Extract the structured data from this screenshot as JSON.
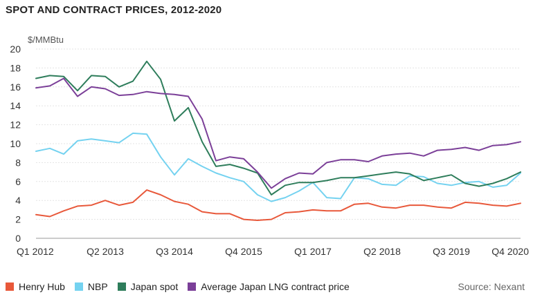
{
  "chart_data": {
    "type": "line",
    "title": "SPOT AND CONTRACT PRICES, 2012-2020",
    "ylabel": "$/MMBtu",
    "xlabel": "",
    "ylim": [
      0,
      20
    ],
    "yticks": [
      0,
      2,
      4,
      6,
      8,
      10,
      12,
      14,
      16,
      18,
      20
    ],
    "grid": true,
    "x_tick_labels": [
      "Q1 2012",
      "Q2 2013",
      "Q3 2014",
      "Q4 2015",
      "Q1 2017",
      "Q2 2018",
      "Q3 2019",
      "Q4 2020"
    ],
    "x_tick_positions": [
      0,
      5,
      10,
      15,
      20,
      25,
      30,
      35
    ],
    "series": [
      {
        "name": "Henry Hub",
        "color": "#e8583a",
        "values": [
          2.5,
          2.3,
          2.9,
          3.4,
          3.5,
          4.0,
          3.5,
          3.8,
          5.1,
          4.6,
          3.9,
          3.6,
          2.8,
          2.6,
          2.6,
          2.0,
          1.9,
          2.0,
          2.7,
          2.8,
          3.0,
          2.9,
          2.9,
          3.6,
          3.7,
          3.3,
          3.2,
          3.5,
          3.5,
          3.3,
          3.2,
          3.8,
          3.7,
          3.5,
          3.4,
          3.7
        ]
      },
      {
        "name": "NBP",
        "color": "#74d2f0",
        "values": [
          9.2,
          9.5,
          8.9,
          10.3,
          10.5,
          10.3,
          10.1,
          11.1,
          11.0,
          8.6,
          6.7,
          8.4,
          7.6,
          6.9,
          6.4,
          6.0,
          4.6,
          3.9,
          4.3,
          5.0,
          5.9,
          4.3,
          4.2,
          6.4,
          6.3,
          5.7,
          5.6,
          6.6,
          6.5,
          5.8,
          5.6,
          5.9,
          6.0,
          5.4,
          5.6,
          6.9
        ]
      },
      {
        "name": "Japan spot",
        "color": "#2e7d5b",
        "values": [
          16.9,
          17.2,
          17.1,
          15.6,
          17.2,
          17.1,
          16.0,
          16.6,
          18.7,
          16.8,
          12.4,
          13.8,
          10.2,
          7.6,
          7.8,
          7.4,
          6.9,
          4.6,
          5.6,
          5.9,
          5.9,
          6.1,
          6.4,
          6.4,
          6.6,
          6.8,
          7.0,
          6.8,
          6.1,
          6.4,
          6.7,
          5.8,
          5.5,
          5.8,
          6.3,
          7.0
        ]
      },
      {
        "name": "Average Japan LNG contract price",
        "color": "#7b3f98",
        "values": [
          15.9,
          16.1,
          16.9,
          15.0,
          16.0,
          15.8,
          15.1,
          15.2,
          15.5,
          15.3,
          15.2,
          15.0,
          12.6,
          8.2,
          8.6,
          8.4,
          7.0,
          5.3,
          6.3,
          6.9,
          6.8,
          8.0,
          8.3,
          8.3,
          8.1,
          8.7,
          8.9,
          9.0,
          8.7,
          9.3,
          9.4,
          9.6,
          9.3,
          9.8,
          9.9,
          10.2
        ]
      }
    ]
  },
  "legend": {
    "items": [
      {
        "label": "Henry Hub",
        "color": "#e8583a"
      },
      {
        "label": "NBP",
        "color": "#74d2f0"
      },
      {
        "label": "Japan spot",
        "color": "#2e7d5b"
      },
      {
        "label": "Average Japan LNG contract price",
        "color": "#7b3f98"
      }
    ]
  },
  "source": "Source: Nexant"
}
